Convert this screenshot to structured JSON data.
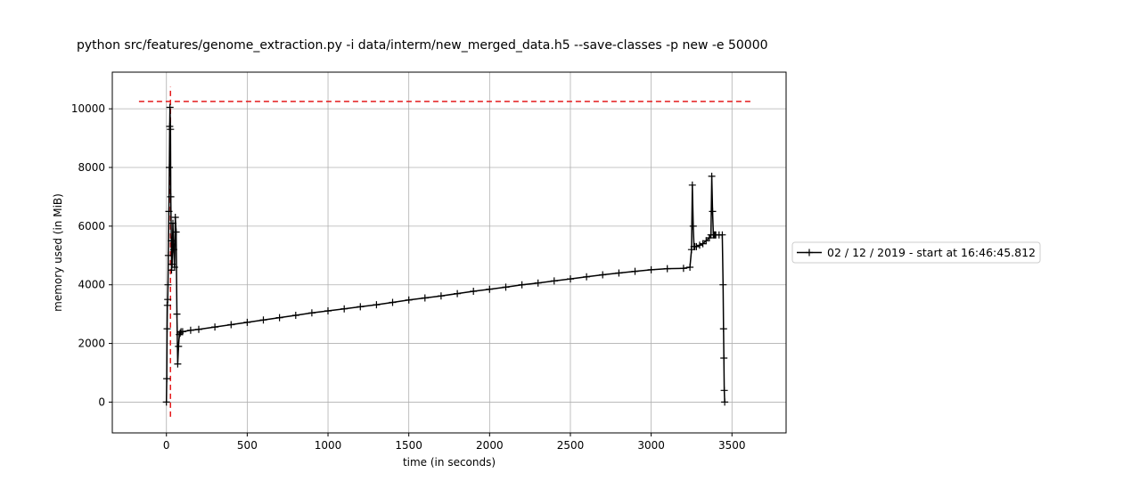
{
  "chart_data": {
    "type": "line",
    "title": "python src/features/genome_extraction.py -i data/interm/new_merged_data.h5 --save-classes -p new -e 50000",
    "xlabel": "time (in seconds)",
    "ylabel": "memory used (in MiB)",
    "xlim": [
      -335,
      3835
    ],
    "ylim": [
      -1050,
      11250
    ],
    "xticks": [
      0,
      500,
      1000,
      1500,
      2000,
      2500,
      3000,
      3500
    ],
    "yticks": [
      0,
      2000,
      4000,
      6000,
      8000,
      10000
    ],
    "grid": true,
    "legend_position": "center-right outside",
    "series": [
      {
        "name": "02 / 12 / 2019 - start at 16:46:45.812",
        "color": "#000000",
        "marker": "+",
        "x": [
          0,
          2,
          4,
          6,
          8,
          10,
          12,
          15,
          18,
          20,
          22,
          25,
          27,
          30,
          32,
          35,
          38,
          40,
          45,
          50,
          55,
          60,
          65,
          70,
          75,
          80,
          85,
          90,
          100,
          150,
          200,
          300,
          400,
          500,
          600,
          700,
          800,
          900,
          1000,
          1100,
          1200,
          1300,
          1400,
          1500,
          1600,
          1700,
          1800,
          1900,
          2000,
          2100,
          2200,
          2300,
          2400,
          2500,
          2600,
          2700,
          2800,
          2900,
          3000,
          3100,
          3200,
          3240,
          3250,
          3255,
          3260,
          3265,
          3270,
          3280,
          3300,
          3320,
          3340,
          3360,
          3370,
          3375,
          3380,
          3385,
          3390,
          3395,
          3400,
          3420,
          3440,
          3445,
          3448,
          3450,
          3452,
          3455
        ],
        "y": [
          0,
          800,
          2500,
          3300,
          3500,
          4000,
          5000,
          6500,
          8000,
          9400,
          10050,
          9300,
          7000,
          5500,
          4500,
          4700,
          5500,
          6100,
          5200,
          4600,
          6300,
          5800,
          3000,
          1300,
          1900,
          2300,
          2350,
          2400,
          2400,
          2450,
          2480,
          2560,
          2640,
          2720,
          2800,
          2880,
          2960,
          3040,
          3110,
          3180,
          3250,
          3320,
          3400,
          3480,
          3550,
          3620,
          3700,
          3780,
          3850,
          3920,
          4000,
          4060,
          4130,
          4200,
          4270,
          4340,
          4400,
          4460,
          4510,
          4550,
          4560,
          4600,
          5200,
          7400,
          6000,
          5300,
          5300,
          5300,
          5350,
          5400,
          5500,
          5600,
          5700,
          7700,
          6500,
          5700,
          5700,
          5700,
          5700,
          5700,
          5700,
          4000,
          2500,
          1500,
          400,
          0
        ]
      }
    ],
    "annotations": [
      {
        "type": "hline",
        "y": 10250,
        "x_from": -170,
        "x_to": 3630,
        "color": "#e41a1c",
        "style": "dashed"
      },
      {
        "type": "vline",
        "x": 25,
        "y_from": -500,
        "y_to": 10750,
        "color": "#e41a1c",
        "style": "dashed"
      }
    ]
  }
}
